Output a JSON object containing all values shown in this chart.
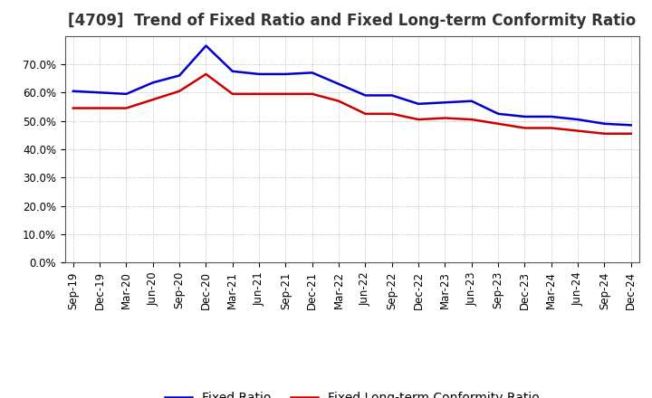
{
  "title": "[4709]  Trend of Fixed Ratio and Fixed Long-term Conformity Ratio",
  "x_labels": [
    "Sep-19",
    "Dec-19",
    "Mar-20",
    "Jun-20",
    "Sep-20",
    "Dec-20",
    "Mar-21",
    "Jun-21",
    "Sep-21",
    "Dec-21",
    "Mar-22",
    "Jun-22",
    "Sep-22",
    "Dec-22",
    "Mar-23",
    "Jun-23",
    "Sep-23",
    "Dec-23",
    "Mar-24",
    "Jun-24",
    "Sep-24",
    "Dec-24"
  ],
  "fixed_ratio": [
    60.5,
    60.0,
    59.5,
    63.5,
    66.0,
    76.5,
    67.5,
    66.5,
    66.5,
    67.0,
    63.0,
    59.0,
    59.0,
    56.0,
    56.5,
    57.0,
    52.5,
    51.5,
    51.5,
    50.5,
    49.0,
    48.5
  ],
  "fixed_lt_ratio": [
    54.5,
    54.5,
    54.5,
    57.5,
    60.5,
    66.5,
    59.5,
    59.5,
    59.5,
    59.5,
    57.0,
    52.5,
    52.5,
    50.5,
    51.0,
    50.5,
    49.0,
    47.5,
    47.5,
    46.5,
    45.5,
    45.5
  ],
  "fixed_ratio_color": "#0000cc",
  "fixed_lt_ratio_color": "#cc0000",
  "ylim": [
    0,
    80
  ],
  "yticks": [
    0,
    10,
    20,
    30,
    40,
    50,
    60,
    70
  ],
  "ytick_labels": [
    "0.0%",
    "10.0%",
    "20.0%",
    "30.0%",
    "40.0%",
    "50.0%",
    "60.0%",
    "70.0%"
  ],
  "legend_fixed_ratio": "Fixed Ratio",
  "legend_fixed_lt_ratio": "Fixed Long-term Conformity Ratio",
  "background_color": "#ffffff",
  "grid_color": "#aaaaaa",
  "line_width": 1.8,
  "title_fontsize": 12,
  "tick_fontsize": 8.5,
  "legend_fontsize": 10
}
